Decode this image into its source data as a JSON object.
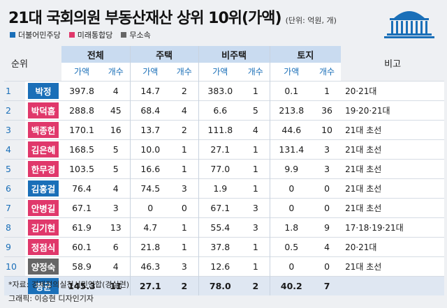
{
  "title": "21대 국회의원 부동산재산 상위 10위(가액)",
  "unit": "(단위: 억원, 개)",
  "legend": [
    {
      "label": "더불어민주당",
      "color": "#1a6fb8"
    },
    {
      "label": "미래통합당",
      "color": "#e0386b"
    },
    {
      "label": "무소속",
      "color": "#666666"
    }
  ],
  "header": {
    "rank": "순위",
    "groups": [
      "전체",
      "주택",
      "비주택",
      "토지"
    ],
    "value": "가액",
    "count": "개수",
    "note": "비고"
  },
  "rows": [
    {
      "rank": "1",
      "name": "박정",
      "party_color": "#1a6fb8",
      "total_v": "397.8",
      "total_c": "4",
      "house_v": "14.7",
      "house_c": "2",
      "nonhouse_v": "383.0",
      "nonhouse_c": "1",
      "land_v": "0.1",
      "land_c": "1",
      "note": "20·21대"
    },
    {
      "rank": "2",
      "name": "박덕흠",
      "party_color": "#e0386b",
      "total_v": "288.8",
      "total_c": "45",
      "house_v": "68.4",
      "house_c": "4",
      "nonhouse_v": "6.6",
      "nonhouse_c": "5",
      "land_v": "213.8",
      "land_c": "36",
      "note": "19·20·21대"
    },
    {
      "rank": "3",
      "name": "백종헌",
      "party_color": "#e0386b",
      "total_v": "170.1",
      "total_c": "16",
      "house_v": "13.7",
      "house_c": "2",
      "nonhouse_v": "111.8",
      "nonhouse_c": "4",
      "land_v": "44.6",
      "land_c": "10",
      "note": "21대 초선"
    },
    {
      "rank": "4",
      "name": "김은혜",
      "party_color": "#e0386b",
      "total_v": "168.5",
      "total_c": "5",
      "house_v": "10.0",
      "house_c": "1",
      "nonhouse_v": "27.1",
      "nonhouse_c": "1",
      "land_v": "131.4",
      "land_c": "3",
      "note": "21대 초선"
    },
    {
      "rank": "5",
      "name": "한무경",
      "party_color": "#e0386b",
      "total_v": "103.5",
      "total_c": "5",
      "house_v": "16.6",
      "house_c": "1",
      "nonhouse_v": "77.0",
      "nonhouse_c": "1",
      "land_v": "9.9",
      "land_c": "3",
      "note": "21대 초선"
    },
    {
      "rank": "6",
      "name": "김홍걸",
      "party_color": "#1a6fb8",
      "total_v": "76.4",
      "total_c": "4",
      "house_v": "74.5",
      "house_c": "3",
      "nonhouse_v": "1.9",
      "nonhouse_c": "1",
      "land_v": "0",
      "land_c": "0",
      "note": "21대 초선"
    },
    {
      "rank": "7",
      "name": "안병길",
      "party_color": "#e0386b",
      "total_v": "67.1",
      "total_c": "3",
      "house_v": "0",
      "house_c": "0",
      "nonhouse_v": "67.1",
      "nonhouse_c": "3",
      "land_v": "0",
      "land_c": "0",
      "note": "21대 초선"
    },
    {
      "rank": "8",
      "name": "김기현",
      "party_color": "#e0386b",
      "total_v": "61.9",
      "total_c": "13",
      "house_v": "4.7",
      "house_c": "1",
      "nonhouse_v": "55.4",
      "nonhouse_c": "3",
      "land_v": "1.8",
      "land_c": "9",
      "note": "17·18·19·21대"
    },
    {
      "rank": "9",
      "name": "정점식",
      "party_color": "#e0386b",
      "total_v": "60.1",
      "total_c": "6",
      "house_v": "21.8",
      "house_c": "1",
      "nonhouse_v": "37.8",
      "nonhouse_c": "1",
      "land_v": "0.5",
      "land_c": "4",
      "note": "20·21대"
    },
    {
      "rank": "10",
      "name": "양정숙",
      "party_color": "#666666",
      "total_v": "58.9",
      "total_c": "4",
      "house_v": "46.3",
      "house_c": "3",
      "nonhouse_v": "12.6",
      "nonhouse_c": "1",
      "land_v": "0",
      "land_c": "0",
      "note": "21대 초선"
    }
  ],
  "average": {
    "name": "평균",
    "total_v": "145.3",
    "total_c": "11",
    "house_v": "27.1",
    "house_c": "2",
    "nonhouse_v": "78.0",
    "nonhouse_c": "2",
    "land_v": "40.2",
    "land_c": "7",
    "note": ""
  },
  "footer": {
    "source": "*자료: 경제정의실천시민연합(경실련)",
    "credit": "그래픽: 이승현 디자인기자"
  }
}
